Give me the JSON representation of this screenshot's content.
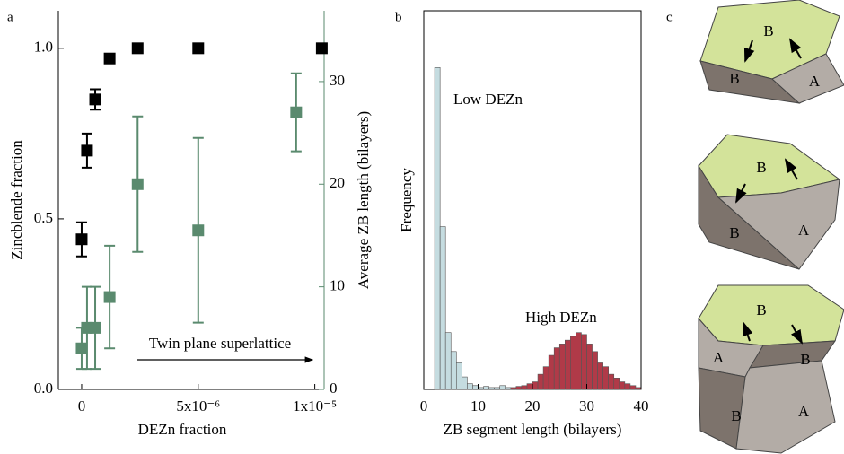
{
  "chart_data": [
    {
      "type": "scatter",
      "panel_label": "a",
      "xlabel": "DEZn fraction",
      "ylabel": "Zincblende fraction",
      "y2label": "Average ZB length (bilayers)",
      "annotation": "Twin plane superlattice",
      "xlim": [
        -1e-06,
        1.04e-05
      ],
      "xticks": [
        0,
        {
          "value": 5e-06,
          "label": "5x10⁻⁶"
        },
        {
          "value": 1e-05,
          "label": "1x10⁻⁵"
        }
      ],
      "ylim": [
        0,
        1.11
      ],
      "yticks": [
        {
          "value": 0,
          "label": "0.0"
        },
        0.5,
        {
          "value": 1,
          "label": "1.0"
        }
      ],
      "y2lim": [
        0,
        36.9
      ],
      "y2ticks": [
        0,
        10,
        20,
        30
      ],
      "y2color": "#5a8a6e",
      "series": [
        {
          "color": "#000000",
          "x": [
            0,
            2.3e-07,
            5.8e-07,
            1.2e-06,
            2.4e-06,
            5e-06,
            1.03e-05
          ],
          "values": [
            0.44,
            0.7,
            0.85,
            0.97,
            1.0,
            1.0,
            1.0
          ],
          "errors": [
            0.05,
            0.05,
            0.03,
            0.01,
            null,
            null,
            null
          ]
        },
        {
          "color": "#5a8a6e",
          "axis": "y2",
          "x": [
            0,
            2.3e-07,
            5.8e-07,
            1.2e-06,
            2.4e-06,
            5e-06,
            9.2e-06
          ],
          "values": [
            4,
            6,
            6,
            9,
            20,
            15.5,
            27
          ],
          "errors": [
            2,
            4,
            4,
            5,
            6.6,
            9,
            3.8
          ]
        }
      ]
    },
    {
      "type": "histogram",
      "panel_label": "b",
      "xlabel": "ZB segment length (bilayers)",
      "ylabel": "Frequency",
      "xlim": [
        0,
        40
      ],
      "xticks": [
        0,
        10,
        20,
        30,
        40
      ],
      "ylim": [
        0,
        100
      ],
      "series": [
        {
          "name": "Low DEZn",
          "color": "#c5dce0",
          "bins": [
            2,
            3,
            4,
            5,
            6,
            7,
            8,
            9,
            10,
            11,
            12,
            13,
            14,
            15,
            16,
            17
          ],
          "values": [
            85,
            43,
            15,
            10,
            7,
            3.3,
            1.5,
            1,
            0.5,
            0.8,
            0.5,
            0.5,
            1,
            0.5,
            0
          ]
        },
        {
          "name": "High DEZn",
          "color": "#b03a48",
          "bins": [
            16,
            17,
            18,
            19,
            20,
            21,
            22,
            23,
            24,
            25,
            26,
            27,
            28,
            29,
            30,
            31,
            32,
            33,
            34,
            35,
            36,
            37,
            38,
            39,
            40
          ],
          "values": [
            0.5,
            0.8,
            1,
            1.5,
            2,
            4,
            6,
            9,
            11,
            12,
            13,
            14,
            15,
            14.5,
            12,
            10,
            7,
            6,
            4,
            3,
            2,
            1.5,
            1,
            0.5
          ]
        }
      ]
    }
  ],
  "diagram": {
    "panel_label": "c",
    "crystals": [
      {
        "labels": [
          "B",
          "B",
          "A"
        ]
      },
      {
        "labels": [
          "B",
          "B",
          "A"
        ]
      },
      {
        "labels": [
          "B",
          "A",
          "B",
          "B",
          "A"
        ]
      }
    ]
  }
}
